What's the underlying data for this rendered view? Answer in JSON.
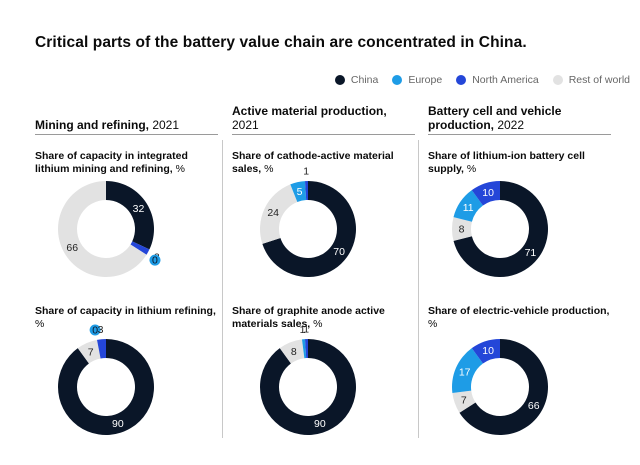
{
  "title": "Critical parts of the battery value chain are concentrated in China.",
  "legend": [
    {
      "name": "China",
      "color": "#0a1628"
    },
    {
      "name": "Europe",
      "color": "#1e9ce6"
    },
    {
      "name": "North America",
      "color": "#2446d8"
    },
    {
      "name": "Rest of world",
      "color": "#e2e2e2"
    }
  ],
  "columns": [
    {
      "bold": "Mining and refining,",
      "year": " 2021"
    },
    {
      "bold": "Active material production,",
      "year": " 2021"
    },
    {
      "bold": "Battery cell and vehicle production,",
      "year": " 2022"
    }
  ],
  "chart_data": [
    {
      "type": "pie",
      "title": "Share of capacity in integrated lithium mining and refining,",
      "unit": " %",
      "categories": [
        "China",
        "Europe",
        "North America",
        "Rest of world"
      ],
      "values": [
        32,
        0,
        2,
        66
      ]
    },
    {
      "type": "pie",
      "title": "Share of cathode-active material sales,",
      "unit": " %",
      "categories": [
        "China",
        "Europe",
        "North America",
        "Rest of world"
      ],
      "values": [
        70,
        5,
        1,
        24
      ]
    },
    {
      "type": "pie",
      "title": "Share of lithium-ion battery cell supply,",
      "unit": " %",
      "categories": [
        "China",
        "Europe",
        "North America",
        "Rest of world"
      ],
      "values": [
        71,
        11,
        10,
        8
      ]
    },
    {
      "type": "pie",
      "title": "Share of capacity in lithium refining,",
      "unit": " %",
      "categories": [
        "China",
        "Europe",
        "North America",
        "Rest of world"
      ],
      "values": [
        90,
        0,
        3,
        7
      ]
    },
    {
      "type": "pie",
      "title": "Share of graphite anode active materials sales,",
      "unit": " %",
      "categories": [
        "China",
        "Europe",
        "North America",
        "Rest of world"
      ],
      "values": [
        90,
        1,
        1,
        8
      ]
    },
    {
      "type": "pie",
      "title": "Share of electric-vehicle production,",
      "unit": " %",
      "categories": [
        "China",
        "Europe",
        "North America",
        "Rest of world"
      ],
      "values": [
        66,
        17,
        10,
        7
      ]
    }
  ]
}
